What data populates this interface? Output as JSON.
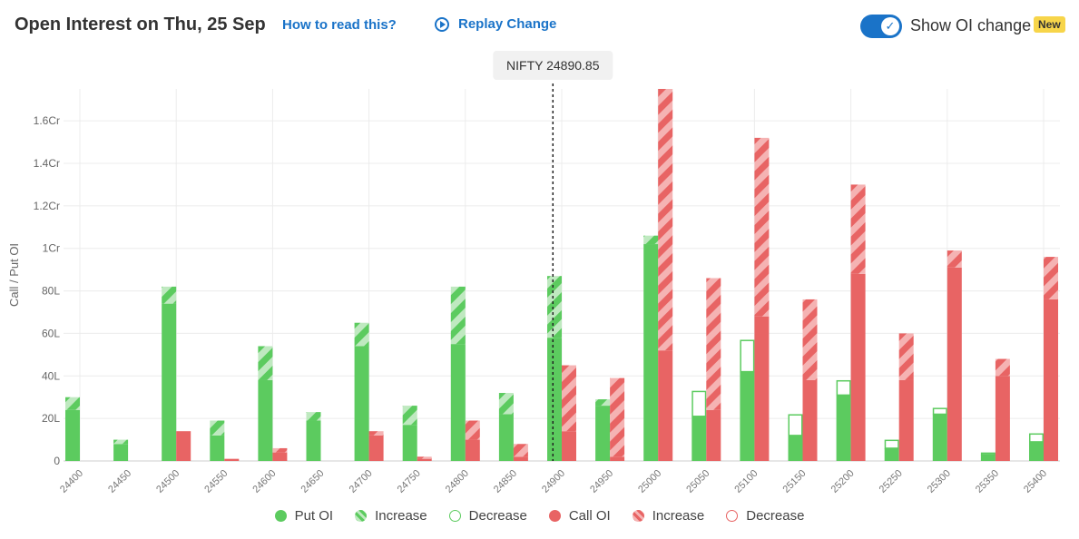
{
  "header": {
    "title": "Open Interest on Thu, 25 Sep",
    "how_to_read": "How to read this?",
    "replay": "Replay Change",
    "toggle_label": "Show OI change",
    "badge": "New"
  },
  "colors": {
    "put": "#5ccb5f",
    "put_light": "#bfe9c0",
    "call": "#e86464",
    "call_light": "#f5b3b3",
    "grid": "#ececec",
    "accent": "#1a73c8"
  },
  "icons": {
    "replay": "play-circle-icon",
    "toggle": "check-icon"
  },
  "legend": [
    {
      "key": "put",
      "label": "Put OI"
    },
    {
      "key": "put-inc",
      "label": "Increase"
    },
    {
      "key": "put-dec",
      "label": "Decrease"
    },
    {
      "key": "call",
      "label": "Call OI"
    },
    {
      "key": "call-inc",
      "label": "Increase"
    },
    {
      "key": "call-dec",
      "label": "Decrease"
    }
  ],
  "chart_data": {
    "type": "bar",
    "ylabel": "Call / Put OI",
    "ylim": [
      0,
      175
    ],
    "yticks": [
      0,
      20,
      40,
      60,
      80,
      100,
      120,
      140,
      160
    ],
    "ytick_labels": [
      "0",
      "20L",
      "40L",
      "60L",
      "80L",
      "1Cr",
      "1.2Cr",
      "1.4Cr",
      "1.6Cr"
    ],
    "unit": "Lakh",
    "spot_label": "NIFTY 24890.85",
    "spot_value": 24890.85,
    "categories": [
      "24400",
      "24450",
      "24500",
      "24550",
      "24600",
      "24650",
      "24700",
      "24750",
      "24800",
      "24850",
      "24900",
      "24950",
      "25000",
      "25050",
      "25100",
      "25150",
      "25200",
      "25250",
      "25300",
      "25350",
      "25400"
    ],
    "series": [
      {
        "name": "Put OI",
        "prev": [
          24,
          8,
          74,
          12,
          38,
          19,
          54,
          17,
          55,
          22,
          58,
          26,
          102,
          33,
          57,
          22,
          38,
          10,
          25,
          4,
          13
        ],
        "curr": [
          30,
          10,
          82,
          19,
          54,
          23,
          65,
          26,
          82,
          32,
          87,
          29,
          106,
          21,
          42,
          12,
          31,
          6,
          22,
          3,
          9
        ]
      },
      {
        "name": "Call OI",
        "prev": [
          0,
          0,
          14,
          1,
          4,
          0,
          12,
          1,
          10,
          2,
          14,
          2,
          52,
          24,
          68,
          38,
          88,
          38,
          91,
          40,
          76
        ],
        "curr": [
          0,
          0,
          14,
          1,
          6,
          0,
          14,
          2,
          19,
          8,
          45,
          39,
          175,
          86,
          152,
          76,
          130,
          60,
          99,
          48,
          96
        ]
      }
    ]
  }
}
